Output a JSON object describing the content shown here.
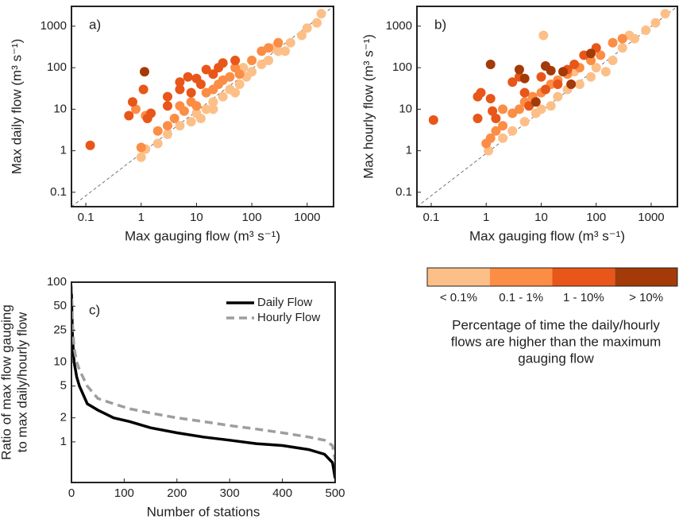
{
  "chart_data": [
    {
      "type": "scatter",
      "annotation": "a)",
      "xlabel": "Max gauging flow (m³ s⁻¹)",
      "ylabel": "Max daily flow (m³ s⁻¹)",
      "xscale": "log",
      "yscale": "log",
      "xlim": [
        0.055,
        3000
      ],
      "ylim": [
        0.045,
        3000
      ],
      "xticks": [
        0.1,
        1,
        10,
        100,
        1000
      ],
      "yticks": [
        0.1,
        1,
        10,
        100,
        1000
      ],
      "series": [
        {
          "color": "#fdbf88",
          "x": [
            1,
            1.2,
            2,
            3,
            5,
            8,
            10,
            15,
            20,
            30,
            40,
            60,
            80,
            100,
            150,
            200,
            300,
            500,
            800,
            1000,
            1500,
            1800,
            50,
            20,
            12,
            70,
            400,
            250
          ],
          "values": [
            0.7,
            1.1,
            1.5,
            2.5,
            4,
            5,
            8,
            10,
            15,
            20,
            30,
            40,
            60,
            80,
            120,
            150,
            250,
            400,
            600,
            900,
            1200,
            2000,
            25,
            10,
            6,
            100,
            250,
            300
          ]
        },
        {
          "color": "#fc8d45",
          "x": [
            1,
            2,
            3,
            4,
            6,
            8,
            10,
            15,
            20,
            30,
            40,
            50,
            100,
            150,
            200,
            300,
            0.8,
            1.2,
            5,
            25,
            60
          ],
          "values": [
            1.2,
            3,
            4,
            6,
            9,
            15,
            12,
            25,
            30,
            50,
            60,
            100,
            150,
            250,
            300,
            400,
            10,
            7,
            12,
            40,
            70
          ]
        },
        {
          "color": "#e8561a",
          "x": [
            0.12,
            0.6,
            0.7,
            1.1,
            1.3,
            1.5,
            3,
            5,
            5,
            7,
            10,
            12,
            20,
            25,
            30,
            50,
            3,
            8,
            15
          ],
          "values": [
            1.35,
            7,
            15,
            30,
            6,
            8,
            20,
            30,
            45,
            60,
            55,
            40,
            70,
            100,
            130,
            150,
            12,
            25,
            90
          ]
        },
        {
          "color": "#a33a08",
          "x": [
            1.15
          ],
          "values": [
            80
          ]
        }
      ]
    },
    {
      "type": "scatter",
      "annotation": "b)",
      "xlabel": "Max gauging flow (m³ s⁻¹)",
      "ylabel": "Max hourly flow (m³ s⁻¹)",
      "xscale": "log",
      "yscale": "log",
      "xlim": [
        0.055,
        3000
      ],
      "ylim": [
        0.045,
        3000
      ],
      "xticks": [
        0.1,
        1,
        10,
        100,
        1000
      ],
      "yticks": [
        0.1,
        1,
        10,
        100,
        1000
      ],
      "series": [
        {
          "color": "#fdbf88",
          "x": [
            1.1,
            2,
            3,
            5,
            8,
            10,
            15,
            20,
            30,
            50,
            80,
            100,
            200,
            300,
            500,
            800,
            1200,
            1800,
            11,
            40,
            150,
            400,
            6
          ],
          "values": [
            1,
            2,
            3,
            5,
            8,
            10,
            12,
            20,
            30,
            40,
            60,
            100,
            150,
            300,
            500,
            800,
            1200,
            2000,
            600,
            80,
            80,
            600,
            15
          ]
        },
        {
          "color": "#fc8d45",
          "x": [
            1,
            1.2,
            1.5,
            2,
            3,
            4,
            5,
            7,
            10,
            15,
            20,
            30,
            50,
            80,
            120,
            200,
            300,
            2
          ],
          "values": [
            1.5,
            2,
            3,
            4,
            8,
            10,
            15,
            20,
            25,
            40,
            50,
            70,
            100,
            150,
            200,
            400,
            500,
            10
          ]
        },
        {
          "color": "#e8561a",
          "x": [
            0.11,
            0.7,
            0.8,
            0.7,
            1.2,
            1.3,
            1.5,
            3,
            4,
            5,
            6,
            10,
            12,
            20,
            30,
            40,
            60,
            100
          ],
          "values": [
            5.5,
            20,
            25,
            6,
            18,
            9,
            6,
            45,
            60,
            25,
            12,
            60,
            30,
            40,
            90,
            120,
            200,
            300
          ]
        },
        {
          "color": "#a33a08",
          "x": [
            1.2,
            4,
            5,
            12,
            15,
            25,
            80,
            35,
            8
          ],
          "values": [
            120,
            90,
            55,
            110,
            85,
            80,
            220,
            40,
            15
          ]
        }
      ]
    },
    {
      "type": "line",
      "annotation": "c)",
      "xlabel": "Number of stations",
      "ylabel": [
        "Ratio of max flow gauging",
        "to max daily/hourly flow"
      ],
      "yscale": "log",
      "xlim": [
        0,
        500
      ],
      "ylim": [
        0.31,
        100
      ],
      "xticks": [
        0,
        100,
        200,
        300,
        400,
        500
      ],
      "yticks": [
        100,
        50,
        25,
        10,
        5,
        2,
        1
      ],
      "x": [
        0,
        2,
        5,
        10,
        15,
        30,
        50,
        80,
        110,
        150,
        200,
        250,
        300,
        350,
        400,
        450,
        480,
        495,
        500
      ],
      "series": [
        {
          "name": "Daily Flow",
          "color": "#000000",
          "dash": false,
          "values": [
            75,
            20,
            10,
            6.5,
            5,
            3,
            2.5,
            2,
            1.8,
            1.5,
            1.3,
            1.15,
            1.05,
            0.95,
            0.9,
            0.8,
            0.7,
            0.55,
            0.35
          ]
        },
        {
          "name": "Hourly Flow",
          "color": "#9e9e9e",
          "dash": true,
          "values": [
            90,
            30,
            15,
            10,
            8,
            5,
            3.5,
            3,
            2.6,
            2.3,
            2,
            1.8,
            1.6,
            1.45,
            1.3,
            1.15,
            1.05,
            0.9,
            0.6
          ]
        }
      ]
    }
  ],
  "colorbar": {
    "labels": [
      "< 0.1%",
      "0.1 - 1%",
      "1 - 10%",
      "> 10%"
    ],
    "colors": [
      "#fdbf88",
      "#fc8d45",
      "#e8561a",
      "#a33a08"
    ],
    "title": [
      "Percentage of time the daily/hourly",
      "flows are higher than the maximum",
      "gauging flow"
    ]
  }
}
